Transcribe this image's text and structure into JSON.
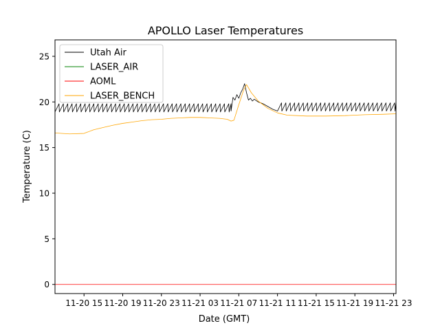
{
  "chart_data": {
    "type": "line",
    "title": "APOLLO Laser Temperatures",
    "xlabel": "Date (GMT)",
    "ylabel": "Temperature (C)",
    "x_unit": "hours since 11-20 12:00 GMT",
    "xlim": [
      0,
      35.25
    ],
    "ylim": [
      -1.0,
      26.8
    ],
    "x_ticks": [
      {
        "x": 3,
        "label": "11-20 15"
      },
      {
        "x": 7,
        "label": "11-20 19"
      },
      {
        "x": 11,
        "label": "11-20 23"
      },
      {
        "x": 15,
        "label": "11-21 03"
      },
      {
        "x": 19,
        "label": "11-21 07"
      },
      {
        "x": 23,
        "label": "11-21 11"
      },
      {
        "x": 27,
        "label": "11-21 15"
      },
      {
        "x": 31,
        "label": "11-21 19"
      },
      {
        "x": 35,
        "label": "11-21 23"
      }
    ],
    "y_ticks": [
      {
        "y": 0,
        "label": "0"
      },
      {
        "y": 5,
        "label": "5"
      },
      {
        "y": 10,
        "label": "10"
      },
      {
        "y": 15,
        "label": "15"
      },
      {
        "y": 20,
        "label": "20"
      },
      {
        "y": 25,
        "label": "25"
      }
    ],
    "legend": {
      "position": "top-left",
      "entries": [
        {
          "name": "Utah Air",
          "color": "#000000"
        },
        {
          "name": "LASER_AIR",
          "color": "#008000"
        },
        {
          "name": "AOML",
          "color": "#ff0000"
        },
        {
          "name": "LASER_BENCH",
          "color": "#ffa500"
        }
      ]
    },
    "series": [
      {
        "name": "Utah Air",
        "color": "#000000",
        "style": "sawtooth",
        "period_h": 0.45,
        "segments": [
          {
            "x0": 0.0,
            "x1": 18.2,
            "low": 18.9,
            "high": 19.8
          },
          {
            "x0": 23.0,
            "x1": 35.25,
            "low": 19.0,
            "high": 19.9
          }
        ],
        "points": [
          [
            18.2,
            19.0
          ],
          [
            18.4,
            20.5
          ],
          [
            18.6,
            20.2
          ],
          [
            18.8,
            20.8
          ],
          [
            19.0,
            20.4
          ],
          [
            19.2,
            21.0
          ],
          [
            19.4,
            21.4
          ],
          [
            19.6,
            22.0
          ],
          [
            19.8,
            21.0
          ],
          [
            20.0,
            20.2
          ],
          [
            20.2,
            20.4
          ],
          [
            20.4,
            20.1
          ],
          [
            20.6,
            20.3
          ],
          [
            21.0,
            20.0
          ],
          [
            21.5,
            19.8
          ],
          [
            22.0,
            19.5
          ],
          [
            22.5,
            19.2
          ],
          [
            23.0,
            19.0
          ]
        ]
      },
      {
        "name": "LASER_AIR",
        "color": "#008000",
        "points": []
      },
      {
        "name": "AOML",
        "color": "#ff0000",
        "points": [
          [
            0.0,
            0.0
          ],
          [
            35.25,
            0.0
          ]
        ]
      },
      {
        "name": "LASER_BENCH",
        "color": "#ffa500",
        "points": [
          [
            0.0,
            16.6
          ],
          [
            1.5,
            16.5
          ],
          [
            3.0,
            16.55
          ],
          [
            4.0,
            16.95
          ],
          [
            5.0,
            17.2
          ],
          [
            6.0,
            17.45
          ],
          [
            7.0,
            17.65
          ],
          [
            8.0,
            17.8
          ],
          [
            9.0,
            17.95
          ],
          [
            10.0,
            18.05
          ],
          [
            11.0,
            18.1
          ],
          [
            12.0,
            18.2
          ],
          [
            13.0,
            18.25
          ],
          [
            14.0,
            18.3
          ],
          [
            15.0,
            18.3
          ],
          [
            16.0,
            18.25
          ],
          [
            17.0,
            18.2
          ],
          [
            17.8,
            18.1
          ],
          [
            18.2,
            17.9
          ],
          [
            18.5,
            18.0
          ],
          [
            19.0,
            19.7
          ],
          [
            19.5,
            21.3
          ],
          [
            19.8,
            21.9
          ],
          [
            20.3,
            21.0
          ],
          [
            21.0,
            20.1
          ],
          [
            22.0,
            19.3
          ],
          [
            23.0,
            18.8
          ],
          [
            24.0,
            18.55
          ],
          [
            26.0,
            18.45
          ],
          [
            28.0,
            18.45
          ],
          [
            30.0,
            18.5
          ],
          [
            32.0,
            18.6
          ],
          [
            34.0,
            18.65
          ],
          [
            35.25,
            18.7
          ]
        ]
      }
    ]
  }
}
